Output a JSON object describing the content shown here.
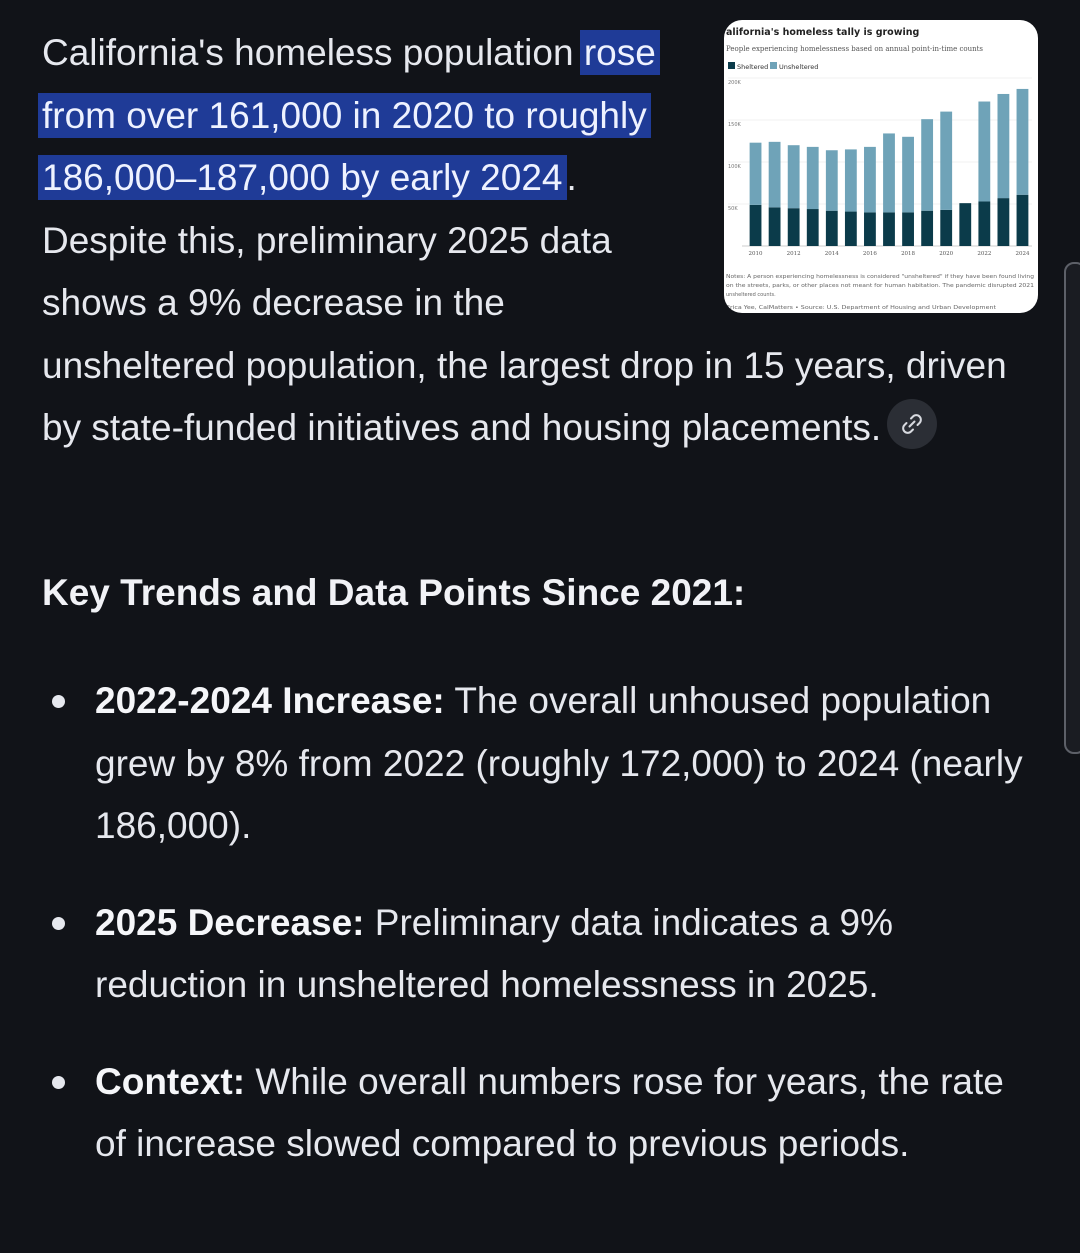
{
  "intro": {
    "before": "California's homeless population ",
    "highlight": "rose from over 161,000 in 2020 to roughly 186,000–187,000 by early 2024",
    "after": ". Despite this, preliminary 2025 data shows a 9% decrease in the unsheltered population, the largest drop in 15 years, driven by state-funded initiatives and housing placements."
  },
  "source_thumbnail": {
    "title": "alifornia's homeless tally is growing",
    "subtitle": "People experiencing homelessness based on annual point-in-time counts",
    "legend_sheltered": "Sheltered",
    "legend_unsheltered": "Unsheltered",
    "notes_line1": "Notes: A person experiencing homelessness is considered \"unsheltered\" if they have been found living",
    "notes_line2": "on the streets, parks, or other places not meant for human habitation. The pandemic disrupted 2021",
    "notes_line3": "unsheltered counts.",
    "credit": "Erica Yee, CalMatters • Source: U.S. Department of Housing and Urban Development",
    "colors": {
      "sheltered": "#0b3b4a",
      "unsheltered": "#6fa3b8"
    }
  },
  "chart_data": {
    "type": "bar",
    "stacked": true,
    "title": "alifornia's homeless tally is growing",
    "subtitle": "People experiencing homelessness based on annual point-in-time counts",
    "x": [
      2010,
      2011,
      2012,
      2013,
      2014,
      2015,
      2016,
      2017,
      2018,
      2019,
      2020,
      2021,
      2022,
      2023,
      2024
    ],
    "x_tick_labels": [
      "2010",
      "2012",
      "2014",
      "2016",
      "2018",
      "2020",
      "2022",
      "2024"
    ],
    "y_tick_labels": [
      "200K",
      "150K",
      "100K",
      "50K"
    ],
    "ylim": [
      0,
      200000
    ],
    "series": [
      {
        "name": "Sheltered",
        "values": [
          49000,
          46000,
          45000,
          44000,
          42000,
          41000,
          40000,
          40000,
          40000,
          42000,
          43000,
          51000,
          53000,
          57000,
          61000
        ]
      },
      {
        "name": "Unsheltered",
        "values": [
          74000,
          78000,
          75000,
          74000,
          72000,
          74000,
          78000,
          94000,
          90000,
          109000,
          117000,
          0,
          119000,
          124000,
          126000
        ]
      }
    ]
  },
  "link_chip": {
    "icon": "link-icon"
  },
  "section_heading": "Key Trends and Data Points Since 2021:",
  "bullets": [
    {
      "label": "2022-2024 Increase:",
      "text": " The overall unhoused population grew by 8% from 2022 (roughly 172,000) to 2024 (nearly 186,000)."
    },
    {
      "label": "2025 Decrease:",
      "text": " Preliminary data indicates a 9% reduction in unsheltered homelessness in 2025."
    },
    {
      "label": "Context:",
      "text": " While overall numbers rose for years, the rate of increase slowed compared to previous periods."
    }
  ]
}
